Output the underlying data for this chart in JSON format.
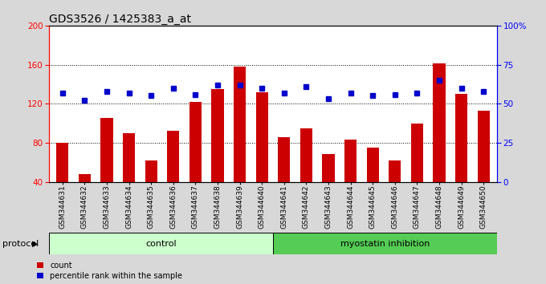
{
  "title": "GDS3526 / 1425383_a_at",
  "samples": [
    "GSM344631",
    "GSM344632",
    "GSM344633",
    "GSM344634",
    "GSM344635",
    "GSM344636",
    "GSM344637",
    "GSM344638",
    "GSM344639",
    "GSM344640",
    "GSM344641",
    "GSM344642",
    "GSM344643",
    "GSM344644",
    "GSM344645",
    "GSM344646",
    "GSM344647",
    "GSM344648",
    "GSM344649",
    "GSM344650"
  ],
  "counts": [
    80,
    48,
    105,
    90,
    62,
    92,
    122,
    135,
    158,
    132,
    86,
    95,
    68,
    83,
    75,
    62,
    100,
    161,
    130,
    113
  ],
  "percentile_ranks": [
    57,
    52,
    58,
    57,
    55,
    60,
    56,
    62,
    62,
    60,
    57,
    61,
    53,
    57,
    55,
    56,
    57,
    65,
    60,
    58
  ],
  "bar_color": "#cc0000",
  "dot_color": "#0000cc",
  "control_count": 10,
  "control_label": "control",
  "treatment_label": "myostatin inhibition",
  "control_bg": "#ccffcc",
  "treatment_bg": "#55cc55",
  "ylim_left": [
    40,
    200
  ],
  "ylim_right": [
    0,
    100
  ],
  "yticks_left": [
    40,
    80,
    120,
    160,
    200
  ],
  "yticks_right": [
    0,
    25,
    50,
    75,
    100
  ],
  "ytick_right_labels": [
    "0",
    "25",
    "50",
    "75",
    "100%"
  ],
  "legend_count": "count",
  "legend_percentile": "percentile rank within the sample",
  "fig_bg": "#d8d8d8",
  "plot_bg": "#ffffff",
  "title_fontsize": 10,
  "tick_fontsize": 6.5,
  "label_fontsize": 8,
  "protocol_label": "protocol"
}
